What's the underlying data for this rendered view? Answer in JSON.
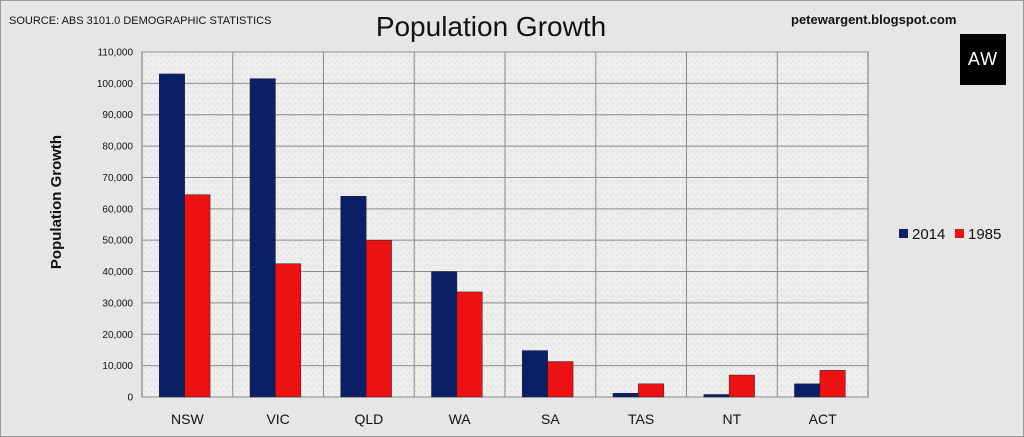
{
  "header": {
    "source": "SOURCE: ABS 3101.0 DEMOGRAPHIC STATISTICS",
    "website": "petewargent.blogspot.com",
    "logo_text": "AW"
  },
  "colors": {
    "series_2014": "#0b1f66",
    "series_1985": "#ee1111",
    "grid": "#8c8c8c",
    "plot_background": "#ececec"
  },
  "chart_data": {
    "type": "bar",
    "title": "Population Growth",
    "xlabel": "",
    "ylabel": "Population Growth",
    "categories": [
      "NSW",
      "VIC",
      "QLD",
      "WA",
      "SA",
      "TAS",
      "NT",
      "ACT"
    ],
    "series": [
      {
        "name": "2014",
        "values": [
          103000,
          101500,
          64000,
          40000,
          14800,
          1200,
          800,
          4200
        ]
      },
      {
        "name": "1985",
        "values": [
          64500,
          42500,
          50000,
          33500,
          11300,
          4200,
          7000,
          8500
        ]
      }
    ],
    "ylim": [
      0,
      110000
    ],
    "yticks": [
      0,
      10000,
      20000,
      30000,
      40000,
      50000,
      60000,
      70000,
      80000,
      90000,
      100000,
      110000
    ],
    "ytick_labels": [
      "0",
      "10,000",
      "20,000",
      "30,000",
      "40,000",
      "50,000",
      "60,000",
      "70,000",
      "80,000",
      "90,000",
      "100,000",
      "110,000"
    ],
    "grid": true,
    "legend_position": "right"
  }
}
